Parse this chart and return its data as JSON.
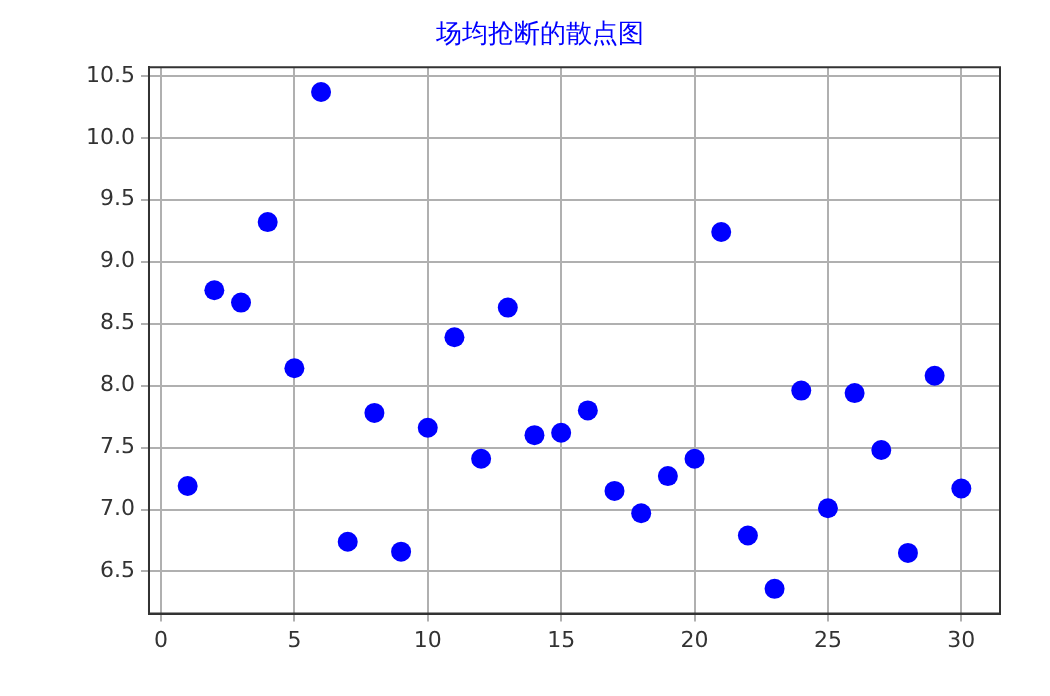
{
  "chart_data": {
    "type": "scatter",
    "title": "场均抢断的散点图",
    "x": [
      1,
      2,
      3,
      4,
      5,
      6,
      7,
      8,
      9,
      10,
      11,
      12,
      13,
      14,
      15,
      16,
      17,
      18,
      19,
      20,
      21,
      22,
      23,
      24,
      25,
      26,
      27,
      28,
      29,
      30
    ],
    "series": [
      {
        "color": "#0000ff",
        "values": [
          7.19,
          8.77,
          8.67,
          9.32,
          8.14,
          10.37,
          6.74,
          7.78,
          6.66,
          7.66,
          8.39,
          7.41,
          8.63,
          7.6,
          7.62,
          7.8,
          7.15,
          6.97,
          7.27,
          7.41,
          9.24,
          6.79,
          6.36,
          7.96,
          7.01,
          7.94,
          7.48,
          6.65,
          8.08,
          7.17
        ]
      }
    ],
    "xlim": [
      -0.45,
      31.45
    ],
    "xticks": [
      0,
      5,
      10,
      15,
      20,
      25,
      30
    ],
    "ylim": [
      6.16,
      10.57
    ],
    "yticks": [
      {
        "value": 6.5,
        "label": "6.5"
      },
      {
        "value": 7,
        "label": "7.0"
      },
      {
        "value": 7.5,
        "label": "7.5"
      },
      {
        "value": 8,
        "label": "8.0"
      },
      {
        "value": 8.5,
        "label": "8.5"
      },
      {
        "value": 9,
        "label": "9.0"
      },
      {
        "value": 9.5,
        "label": "9.5"
      },
      {
        "value": 10,
        "label": "10.0"
      },
      {
        "value": 10.5,
        "label": "10.5"
      }
    ],
    "grid": true,
    "marker": "circle",
    "legend": false
  }
}
